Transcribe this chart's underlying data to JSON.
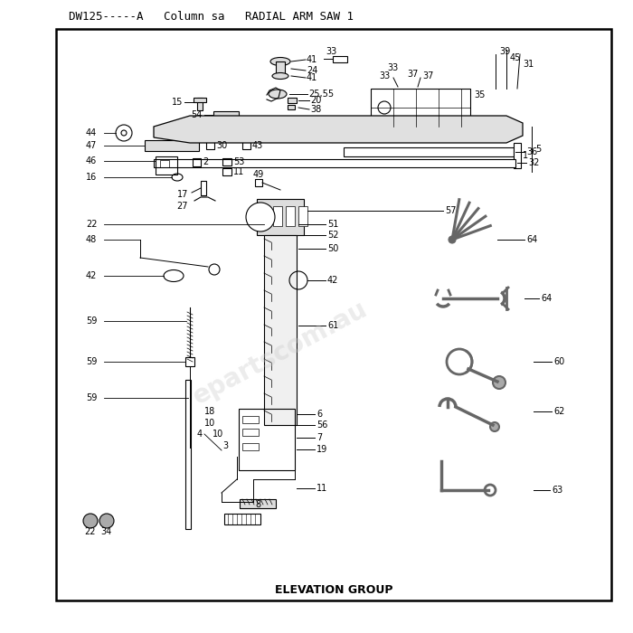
{
  "title": "DW125-----A   Column sa   RADIAL ARM SAW 1",
  "footer": "ELEVATION GROUP",
  "bg_color": "#ffffff",
  "border_color": "#000000",
  "text_color": "#000000",
  "title_fontsize": 9,
  "footer_fontsize": 9,
  "watermark": "epartscom.au"
}
